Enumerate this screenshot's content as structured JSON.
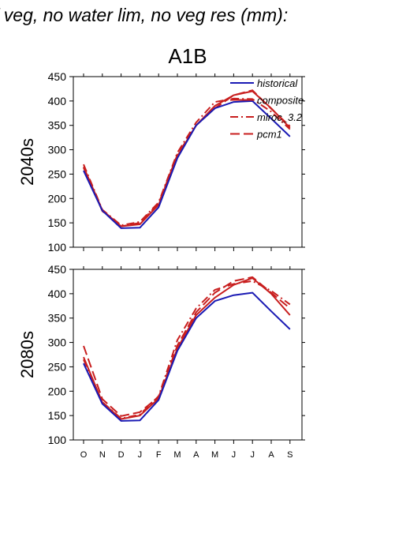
{
  "figure_title": "f veg, no water lim, no veg res (mm):",
  "chart_data": [
    {
      "type": "line",
      "title": "A1B",
      "ylabel": "2040s",
      "xlabel": "",
      "categories": [
        "O",
        "N",
        "D",
        "J",
        "F",
        "M",
        "A",
        "M",
        "J",
        "J",
        "A",
        "S"
      ],
      "ylim": [
        100,
        450
      ],
      "yticks": [
        100,
        150,
        200,
        250,
        300,
        350,
        400,
        450
      ],
      "grid": false,
      "legend_position": "top-right",
      "series": [
        {
          "name": "historical",
          "color": "#1a1ab4",
          "style": "solid",
          "values": [
            257,
            175,
            139,
            140,
            182,
            283,
            350,
            385,
            398,
            400,
            364,
            327
          ]
        },
        {
          "name": "composite",
          "color": "#c81e1e",
          "style": "solid",
          "values": [
            265,
            176,
            143,
            147,
            187,
            287,
            350,
            390,
            412,
            420,
            385,
            345
          ]
        },
        {
          "name": "miroc_3.2",
          "color": "#c81e1e",
          "style": "dashdot",
          "values": [
            270,
            177,
            145,
            152,
            192,
            294,
            356,
            398,
            405,
            404,
            378,
            342
          ]
        },
        {
          "name": "pcm1",
          "color": "#c81e1e",
          "style": "dash",
          "values": [
            263,
            174,
            143,
            150,
            190,
            290,
            350,
            385,
            412,
            422,
            384,
            348
          ]
        }
      ]
    },
    {
      "type": "line",
      "title": "",
      "ylabel": "2080s",
      "xlabel": "",
      "categories": [
        "O",
        "N",
        "D",
        "J",
        "F",
        "M",
        "A",
        "M",
        "J",
        "J",
        "A",
        "S"
      ],
      "ylim": [
        100,
        450
      ],
      "yticks": [
        100,
        150,
        200,
        250,
        300,
        350,
        400,
        450
      ],
      "grid": false,
      "series": [
        {
          "name": "historical",
          "color": "#1a1ab4",
          "style": "solid",
          "values": [
            257,
            174,
            139,
            140,
            182,
            283,
            350,
            385,
            397,
            402,
            364,
            327
          ]
        },
        {
          "name": "composite",
          "color": "#c81e1e",
          "style": "solid",
          "values": [
            270,
            177,
            143,
            150,
            185,
            288,
            356,
            392,
            418,
            432,
            400,
            356
          ]
        },
        {
          "name": "miroc_3.2",
          "color": "#c81e1e",
          "style": "dashdot",
          "values": [
            265,
            178,
            144,
            152,
            190,
            305,
            370,
            408,
            420,
            426,
            406,
            378
          ]
        },
        {
          "name": "pcm1",
          "color": "#c81e1e",
          "style": "dash",
          "values": [
            293,
            184,
            149,
            157,
            188,
            294,
            362,
            402,
            426,
            434,
            402,
            370
          ]
        }
      ]
    }
  ]
}
